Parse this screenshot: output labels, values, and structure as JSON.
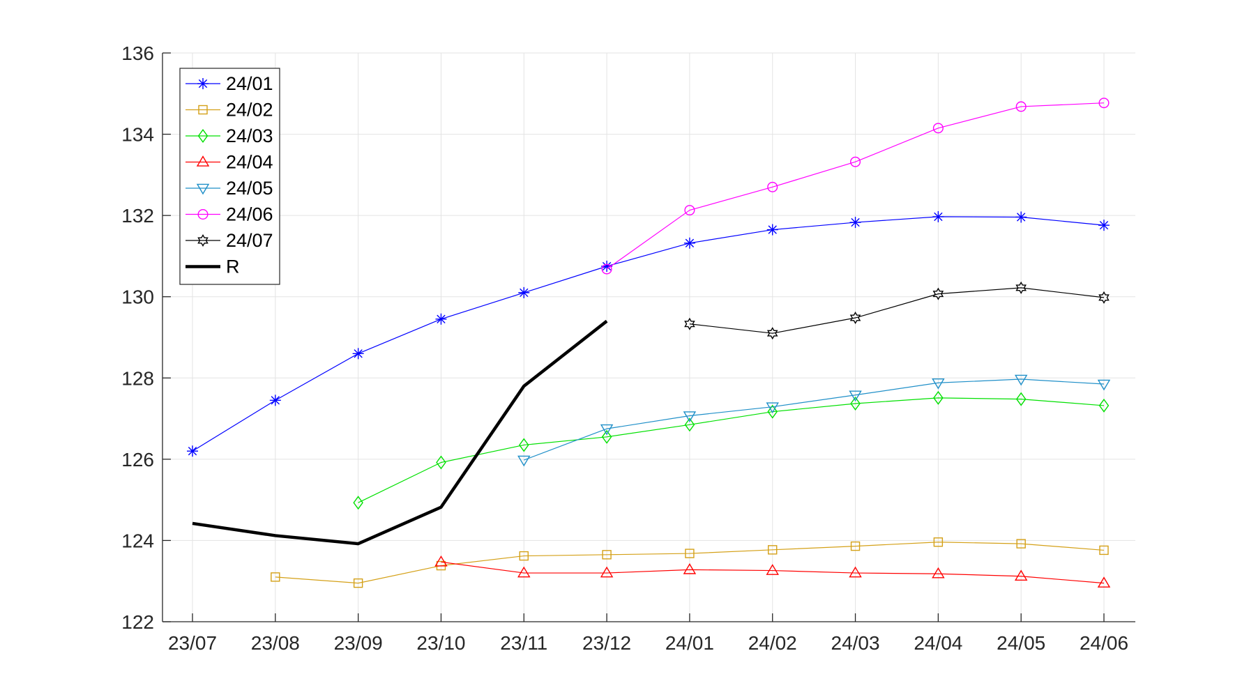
{
  "chart_data": {
    "type": "line",
    "categories": [
      "23/07",
      "23/08",
      "23/09",
      "23/10",
      "23/11",
      "23/12",
      "24/01",
      "24/02",
      "24/03",
      "24/04",
      "24/05",
      "24/06"
    ],
    "ylim": [
      122,
      136
    ],
    "yticks": [
      122,
      124,
      126,
      128,
      130,
      132,
      134,
      136
    ],
    "ytick_labels": [
      "122",
      "124",
      "126",
      "128",
      "130",
      "132",
      "134",
      "136"
    ],
    "grid": true,
    "legend_position": "top-left",
    "series": [
      {
        "name": "24/01",
        "color": "#0000ff",
        "marker": "asterisk",
        "line_width": 1.2,
        "values": [
          126.2,
          127.45,
          128.6,
          129.45,
          130.1,
          130.75,
          131.32,
          131.65,
          131.83,
          131.97,
          131.96,
          131.76
        ]
      },
      {
        "name": "24/02",
        "color": "#d4a017",
        "marker": "square",
        "line_width": 1.2,
        "values": [
          null,
          123.1,
          122.95,
          123.38,
          123.62,
          123.65,
          123.68,
          123.77,
          123.86,
          123.96,
          123.92,
          123.76
        ]
      },
      {
        "name": "24/03",
        "color": "#00e000",
        "marker": "diamond",
        "line_width": 1.2,
        "values": [
          null,
          null,
          124.93,
          125.92,
          126.35,
          126.55,
          126.85,
          127.17,
          127.37,
          127.51,
          127.48,
          127.32
        ]
      },
      {
        "name": "24/04",
        "color": "#ff0000",
        "marker": "triangle-up",
        "line_width": 1.2,
        "values": [
          null,
          null,
          null,
          123.47,
          123.2,
          123.2,
          123.28,
          123.26,
          123.2,
          123.18,
          123.12,
          122.95
        ]
      },
      {
        "name": "24/05",
        "color": "#1f8fc8",
        "marker": "triangle-down",
        "line_width": 1.2,
        "values": [
          null,
          null,
          null,
          null,
          125.98,
          126.75,
          127.07,
          127.29,
          127.58,
          127.88,
          127.97,
          127.85
        ]
      },
      {
        "name": "24/06",
        "color": "#ff00ff",
        "marker": "circle",
        "line_width": 1.2,
        "values": [
          null,
          null,
          null,
          null,
          null,
          130.68,
          132.13,
          132.7,
          133.32,
          134.15,
          134.68,
          134.77
        ]
      },
      {
        "name": "24/07",
        "color": "#000000",
        "marker": "hexagram",
        "line_width": 1.2,
        "values": [
          null,
          null,
          null,
          null,
          null,
          null,
          129.33,
          129.1,
          129.48,
          130.07,
          130.22,
          129.98
        ]
      },
      {
        "name": "R",
        "color": "#000000",
        "marker": "none",
        "line_width": 4.5,
        "values": [
          124.42,
          124.12,
          123.92,
          124.82,
          127.8,
          129.4,
          null,
          null,
          null,
          null,
          null,
          null
        ]
      }
    ]
  }
}
